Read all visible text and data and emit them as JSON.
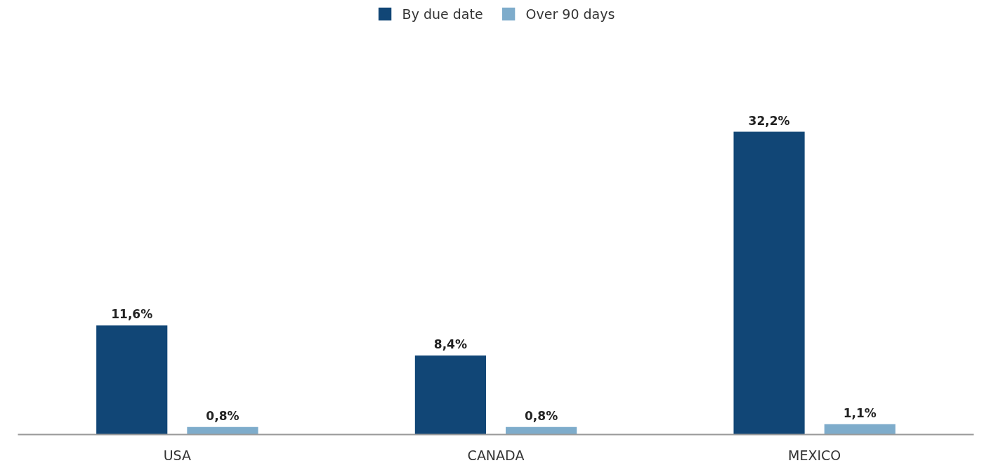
{
  "chart_data": {
    "type": "bar",
    "categories": [
      "USA",
      "CANADA",
      "MEXICO"
    ],
    "series": [
      {
        "name": "By due date",
        "color": "#114676",
        "values": [
          11.6,
          8.4,
          32.2
        ],
        "value_labels": [
          "11,6%",
          "8,4%",
          "32,2%"
        ]
      },
      {
        "name": "Over 90 days",
        "color": "#7eaccb",
        "values": [
          0.8,
          0.8,
          1.1
        ],
        "value_labels": [
          "0,8%",
          "0,8%",
          "1,1%"
        ]
      }
    ],
    "legend": "top"
  }
}
